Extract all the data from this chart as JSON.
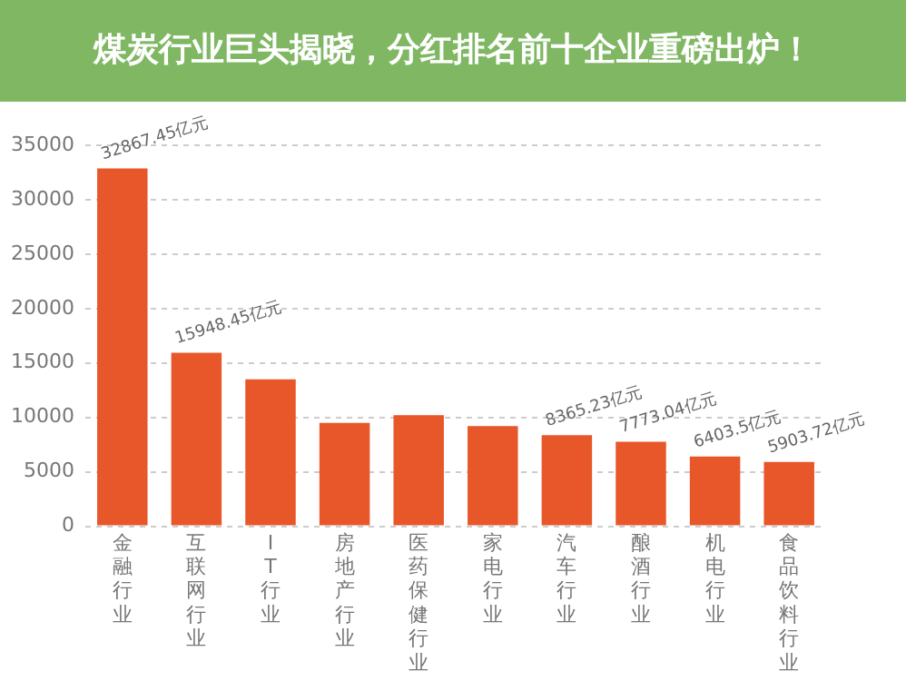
{
  "chart_data": {
    "type": "bar",
    "title": "煤炭行业巨头揭晓，分红排名前十企业重磅出炉！",
    "categories": [
      "金融行业",
      "互联网行业",
      "IT行业",
      "房地产行业",
      "医药保健行业",
      "家电行业",
      "汽车行业",
      "酿酒行业",
      "机电行业",
      "食品饮料行业"
    ],
    "values": [
      32867.45,
      15948.45,
      13500,
      9500,
      10200,
      9200,
      8365.23,
      7773.04,
      6403.5,
      5903.72
    ],
    "value_labels": [
      "32867.45亿元",
      "15948.45亿元",
      null,
      null,
      null,
      null,
      "8365.23亿元",
      "7773.04亿元",
      "6403.5亿元",
      "5903.72亿元"
    ],
    "color": "#e8572a",
    "ylim": [
      0,
      35000
    ],
    "yticks": [
      0,
      5000,
      10000,
      15000,
      20000,
      25000,
      30000,
      35000
    ],
    "grid": "y",
    "legend": false
  }
}
